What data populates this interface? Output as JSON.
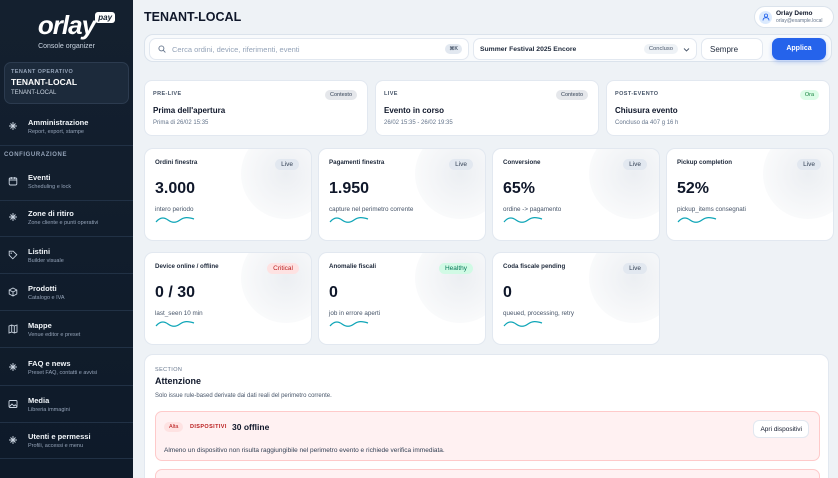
{
  "sidebar": {
    "logo": "orlay",
    "logo_badge": "pay",
    "subtitle": "Console organizer",
    "tenant": {
      "kicker": "TENANT OPERATIVO",
      "name": "TENANT-LOCAL",
      "sub": "TENANT-LOCAL"
    },
    "section_label": "CONFIGURAZIONE",
    "items": [
      {
        "label": "Amministrazione",
        "sub": "Report, export, stampe",
        "icon": "sparkle-icon"
      },
      {
        "label": "Eventi",
        "sub": "Scheduling e lock",
        "icon": "calendar-icon"
      },
      {
        "label": "Zone di ritiro",
        "sub": "Zone cliente e punti operativi",
        "icon": "sparkle-icon"
      },
      {
        "label": "Listini",
        "sub": "Builder visuale",
        "icon": "tag-icon"
      },
      {
        "label": "Prodotti",
        "sub": "Catalogo e IVA",
        "icon": "box-icon"
      },
      {
        "label": "Mappe",
        "sub": "Venue editor e preset",
        "icon": "map-icon"
      },
      {
        "label": "FAQ e news",
        "sub": "Preset FAQ, contatti e avvisi",
        "icon": "sparkle-icon"
      },
      {
        "label": "Media",
        "sub": "Libreria immagini",
        "icon": "image-icon"
      },
      {
        "label": "Utenti e permessi",
        "sub": "Profili, accessi e menu",
        "icon": "sparkle-icon"
      }
    ]
  },
  "header": {
    "title": "TENANT-LOCAL",
    "user_name": "Orlay Demo",
    "user_email": "orlay@example.local"
  },
  "filters": {
    "search_placeholder": "Cerca ordini, device, riferimenti, eventi",
    "shortcut": "⌘K",
    "event_name": "Summer Festival 2025 Encore",
    "event_status": "Concluso",
    "period": "Sempre",
    "apply_label": "Applica"
  },
  "phases": [
    {
      "kicker": "PRE-LIVE",
      "badge": "Contesto",
      "title": "Prima dell'apertura",
      "sub": "Prima di 26/02 15:35",
      "active": false
    },
    {
      "kicker": "LIVE",
      "badge": "Contesto",
      "title": "Evento in corso",
      "sub": "26/02 15:35 - 26/02 19:35",
      "active": false
    },
    {
      "kicker": "POST-EVENTO",
      "badge": "Ora",
      "title": "Chiusura evento",
      "sub": "Concluso da 407 g 16 h",
      "active": true
    }
  ],
  "kpis": [
    {
      "label": "Ordini finestra",
      "badge": "Live",
      "value": "3.000",
      "sub": "intero periodo",
      "tone": "live"
    },
    {
      "label": "Pagamenti finestra",
      "badge": "Live",
      "value": "1.950",
      "sub": "capture nel perimetro corrente",
      "tone": "live"
    },
    {
      "label": "Conversione",
      "badge": "Live",
      "value": "65%",
      "sub": "ordine -> pagamento",
      "tone": "live"
    },
    {
      "label": "Pickup completion",
      "badge": "Live",
      "value": "52%",
      "sub": "pickup_items consegnati",
      "tone": "live"
    },
    {
      "label": "Device online / offline",
      "badge": "Critical",
      "value": "0 / 30",
      "sub": "last_seen 10 min",
      "tone": "crit"
    },
    {
      "label": "Anomalie fiscali",
      "badge": "Healthy",
      "value": "0",
      "sub": "job in errore aperti",
      "tone": "ok"
    },
    {
      "label": "Coda fiscale pending",
      "badge": "Live",
      "value": "0",
      "sub": "queued, processing, retry",
      "tone": "live"
    }
  ],
  "attention": {
    "kicker": "SECTION",
    "title": "Attenzione",
    "sub": "Solo issue rule-based derivate dai dati reali del perimetro corrente.",
    "alert": {
      "severity": "Alta",
      "category": "DISPOSITIVI",
      "title": "30 offline",
      "desc": "Almeno un dispositivo non risulta raggiungibile nel perimetro evento e richiede verifica immediata.",
      "action": "Apri dispositivi"
    }
  },
  "colors": {
    "accent": "#2563eb",
    "sidebar": "#14202f",
    "spark": "#0ea5b7",
    "critical": "#b91c1c",
    "healthy": "#047857"
  }
}
